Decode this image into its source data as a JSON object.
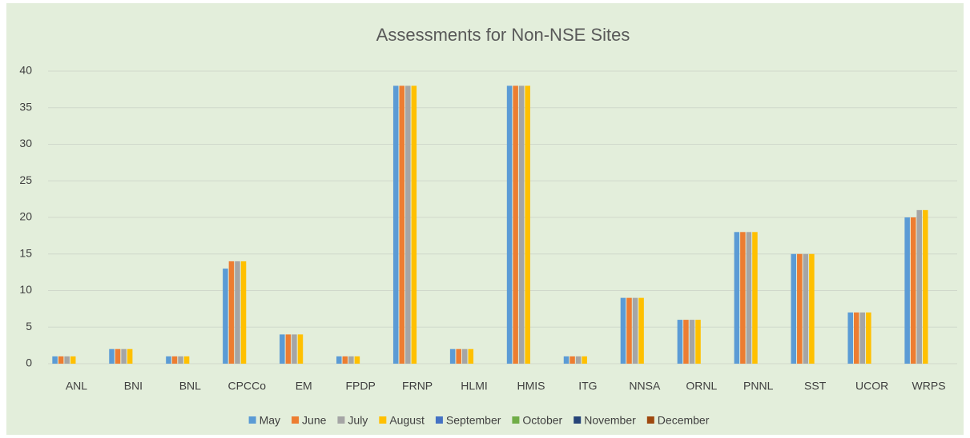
{
  "chart_data": {
    "type": "bar",
    "title": "Assessments for Non-NSE Sites",
    "categories": [
      "ANL",
      "BNI",
      "BNL",
      "CPCCo",
      "EM",
      "FPDP",
      "FRNP",
      "HLMI",
      "HMIS",
      "ITG",
      "NNSA",
      "ORNL",
      "PNNL",
      "SST",
      "UCOR",
      "WRPS"
    ],
    "series": [
      {
        "name": "May",
        "color": "#5b9bd5",
        "values": [
          1,
          2,
          1,
          13,
          4,
          1,
          38,
          2,
          38,
          1,
          9,
          6,
          18,
          15,
          7,
          20
        ]
      },
      {
        "name": "June",
        "color": "#ed7d31",
        "values": [
          1,
          2,
          1,
          14,
          4,
          1,
          38,
          2,
          38,
          1,
          9,
          6,
          18,
          15,
          7,
          20
        ]
      },
      {
        "name": "July",
        "color": "#a5a5a5",
        "values": [
          1,
          2,
          1,
          14,
          4,
          1,
          38,
          2,
          38,
          1,
          9,
          6,
          18,
          15,
          7,
          21
        ]
      },
      {
        "name": "August",
        "color": "#ffc000",
        "values": [
          1,
          2,
          1,
          14,
          4,
          1,
          38,
          2,
          38,
          1,
          9,
          6,
          18,
          15,
          7,
          21
        ]
      },
      {
        "name": "September",
        "color": "#4472c4",
        "values": [
          null,
          null,
          null,
          null,
          null,
          null,
          null,
          null,
          null,
          null,
          null,
          null,
          null,
          null,
          null,
          null
        ]
      },
      {
        "name": "October",
        "color": "#70ad47",
        "values": [
          null,
          null,
          null,
          null,
          null,
          null,
          null,
          null,
          null,
          null,
          null,
          null,
          null,
          null,
          null,
          null
        ]
      },
      {
        "name": "November",
        "color": "#264478",
        "values": [
          null,
          null,
          null,
          null,
          null,
          null,
          null,
          null,
          null,
          null,
          null,
          null,
          null,
          null,
          null,
          null
        ]
      },
      {
        "name": "December",
        "color": "#9e480e",
        "values": [
          null,
          null,
          null,
          null,
          null,
          null,
          null,
          null,
          null,
          null,
          null,
          null,
          null,
          null,
          null,
          null
        ]
      }
    ],
    "ylim": [
      0,
      40
    ],
    "yticks": [
      0,
      5,
      10,
      15,
      20,
      25,
      30,
      35,
      40
    ],
    "grid": true,
    "legend": "bottom"
  }
}
